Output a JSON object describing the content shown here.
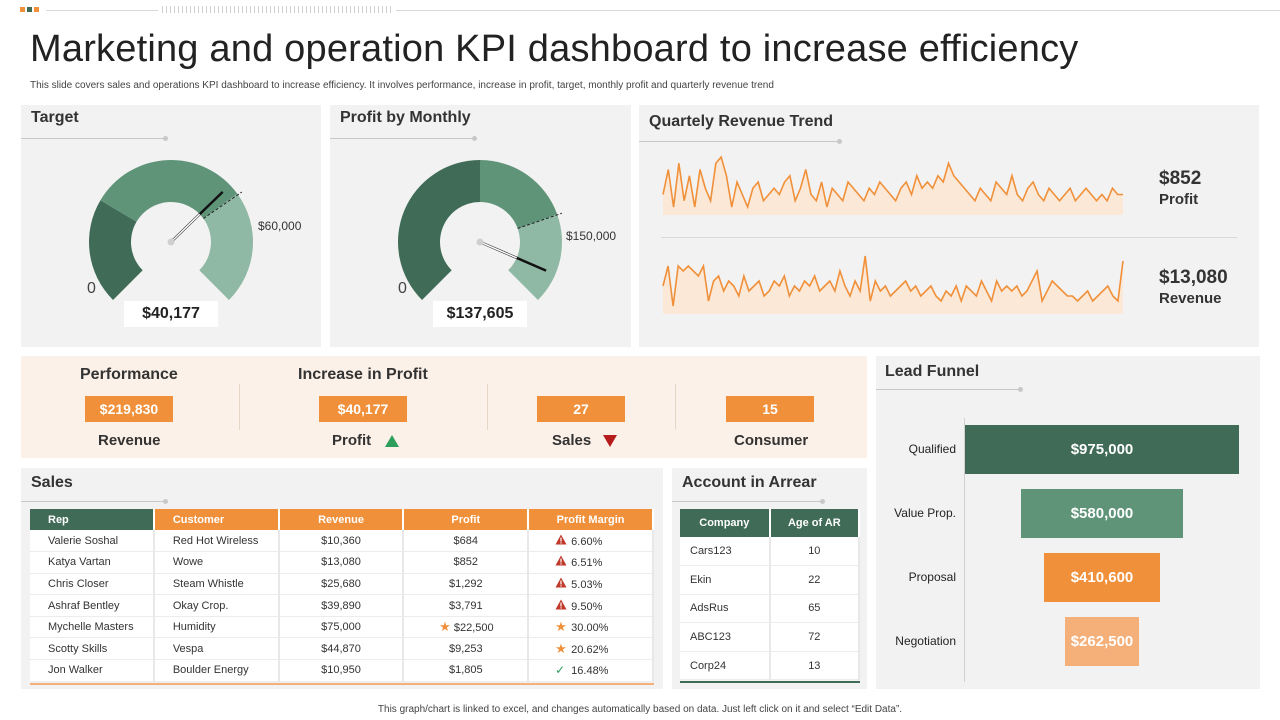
{
  "header": {
    "title": "Marketing and operation KPI dashboard to increase efficiency",
    "subtitle": "This slide covers sales and operations KPI  dashboard to increase efficiency. It involves performance, increase in profit, target, monthly  profit and  quarterly revenue trend",
    "footer": "This graph/chart is linked to excel, and changes automatically based on data. Just left click on it and select “Edit Data”."
  },
  "colors": {
    "dark_green": "#3f6b57",
    "mid_green": "#5f9479",
    "light_green": "#8fb8a5",
    "orange": "#f0903a",
    "light_orange": "#f5b07a",
    "red": "#c0392b",
    "up_green": "#2e9e5b",
    "panel_bg": "#f2f2f2",
    "peach_bg": "#fcf1e8"
  },
  "target": {
    "title": "Target",
    "value": "$40,177",
    "zero_label": "0",
    "mark_label": "$60,000",
    "needle_fraction": 0.67
  },
  "profit_monthly": {
    "title": "Profit by Monthly",
    "value": "$137,605",
    "zero_label": "0",
    "mark_label": "$150,000",
    "needle_fraction": 0.92
  },
  "quarterly": {
    "title": "Quartely Revenue Trend",
    "profit_value": "$852",
    "profit_label": "Profit",
    "revenue_value": "$13,080",
    "revenue_label": "Revenue"
  },
  "kpis": {
    "performance_head": "Performance",
    "increase_head": "Increase in Profit",
    "items": [
      {
        "value": "$219,830",
        "label": "Revenue",
        "trend": ""
      },
      {
        "value": "$40,177",
        "label": "Profit",
        "trend": "up"
      },
      {
        "value": "27",
        "label": "Sales",
        "trend": "down"
      },
      {
        "value": "15",
        "label": "Consumer",
        "trend": ""
      }
    ]
  },
  "sales": {
    "title": "Sales",
    "columns": [
      "Rep",
      "Customer",
      "Revenue",
      "Profit",
      "Profit Margin"
    ],
    "rows": [
      {
        "rep": "Valerie Soshal",
        "customer": "Red Hot Wireless",
        "revenue": "$10,360",
        "profit": "$684",
        "profit_icon": "",
        "margin": "6.60%",
        "margin_icon": "warning-icon"
      },
      {
        "rep": "Katya Vartan",
        "customer": "Wowe",
        "revenue": "$13,080",
        "profit": "$852",
        "profit_icon": "",
        "margin": "6.51%",
        "margin_icon": "warning-icon"
      },
      {
        "rep": "Chris Closer",
        "customer": "Steam Whistle",
        "revenue": "$25,680",
        "profit": "$1,292",
        "profit_icon": "",
        "margin": "5.03%",
        "margin_icon": "warning-icon"
      },
      {
        "rep": "Ashraf Bentley",
        "customer": "Okay Crop.",
        "revenue": "$39,890",
        "profit": "$3,791",
        "profit_icon": "",
        "margin": "9.50%",
        "margin_icon": "warning-icon"
      },
      {
        "rep": "Mychelle Masters",
        "customer": "Humidity",
        "revenue": "$75,000",
        "profit": "$22,500",
        "profit_icon": "star-icon",
        "margin": "30.00%",
        "margin_icon": "star-icon"
      },
      {
        "rep": "Scotty Skills",
        "customer": "Vespa",
        "revenue": "$44,870",
        "profit": "$9,253",
        "profit_icon": "",
        "margin": "20.62%",
        "margin_icon": "star-icon"
      },
      {
        "rep": "Jon Walker",
        "customer": "Boulder Energy",
        "revenue": "$10,950",
        "profit": "$1,805",
        "profit_icon": "",
        "margin": "16.48%",
        "margin_icon": "check-icon"
      }
    ]
  },
  "arrear": {
    "title": "Account in Arrear",
    "columns": [
      "Company",
      "Age of AR"
    ],
    "rows": [
      {
        "company": "Cars123",
        "age": "10"
      },
      {
        "company": "Ekin",
        "age": "22"
      },
      {
        "company": "AdsRus",
        "age": "65"
      },
      {
        "company": "ABC123",
        "age": "72"
      },
      {
        "company": "Corp24",
        "age": "13"
      }
    ]
  },
  "chart_data": [
    {
      "type": "gauge",
      "title": "Target",
      "value": 40177,
      "range": [
        0,
        60000
      ],
      "labels": [
        "0",
        "$60,000"
      ]
    },
    {
      "type": "gauge",
      "title": "Profit by Monthly",
      "value": 137605,
      "range": [
        0,
        150000
      ],
      "labels": [
        "0",
        "$150,000"
      ]
    },
    {
      "type": "line",
      "title": "Quartely Revenue Trend - Profit",
      "series": [
        {
          "name": "Profit",
          "values": [
            4,
            8,
            2,
            9,
            3,
            7,
            2,
            8,
            5,
            3,
            9,
            10,
            7,
            2,
            6,
            4,
            2,
            5,
            6,
            3,
            4,
            5,
            4,
            6,
            7,
            3,
            5,
            8,
            4,
            3,
            6,
            2,
            5,
            4,
            3,
            6,
            5,
            4,
            3,
            5,
            4,
            6,
            5,
            4,
            3,
            5,
            6,
            4,
            7,
            5,
            6,
            5,
            7,
            6,
            9,
            7,
            6,
            5,
            4,
            3,
            5,
            4,
            3,
            6,
            5,
            4,
            7,
            4,
            3,
            5,
            6,
            4,
            3,
            5,
            4,
            3,
            4,
            5,
            3,
            4,
            5,
            4,
            3,
            4,
            3,
            5,
            4,
            4
          ]
        }
      ]
    },
    {
      "type": "line",
      "title": "Quartely Revenue Trend - Revenue",
      "series": [
        {
          "name": "Revenue",
          "values": [
            6,
            10,
            2,
            10,
            9,
            10,
            9,
            8,
            10,
            3,
            7,
            8,
            5,
            7,
            6,
            4,
            8,
            5,
            6,
            7,
            4,
            5,
            7,
            6,
            8,
            4,
            6,
            5,
            7,
            6,
            8,
            5,
            6,
            7,
            5,
            9,
            6,
            4,
            7,
            5,
            12,
            3,
            7,
            5,
            6,
            4,
            5,
            6,
            7,
            5,
            6,
            4,
            5,
            6,
            4,
            3,
            5,
            4,
            6,
            3,
            6,
            5,
            4,
            7,
            5,
            3,
            7,
            5,
            6,
            5,
            6,
            4,
            5,
            7,
            9,
            3,
            5,
            7,
            6,
            5,
            4,
            4,
            3,
            4,
            5,
            3,
            4,
            5,
            6,
            4,
            3,
            11
          ]
        }
      ]
    },
    {
      "type": "bar",
      "title": "Lead Funnel",
      "categories": [
        "Qualified",
        "Value Prop.",
        "Proposal",
        "Negotiation"
      ],
      "values": [
        975000,
        580000,
        410600,
        262500
      ],
      "value_labels": [
        "$975,000",
        "$580,000",
        "$410,600",
        "$262,500"
      ]
    }
  ],
  "funnel": {
    "title": "Lead Funnel"
  }
}
